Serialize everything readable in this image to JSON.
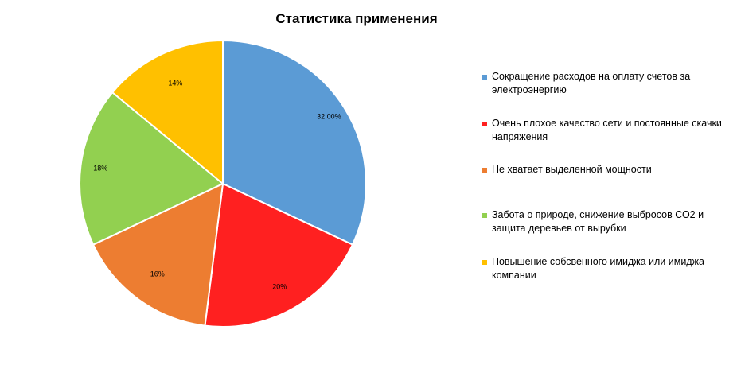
{
  "chart_data": {
    "type": "pie",
    "title": "Статистика применения",
    "categories": [
      "Сокращение расходов  на оплату счетов за электроэнергию",
      "Очень плохое качество сети и постоянные скачки напряжения",
      "Не хватает выделенной мощности",
      "Забота о природе, снижение выбросов СО2 и защита деревьев от вырубки",
      "Повышение собсвенного имиджа или имиджа компании"
    ],
    "values": [
      32,
      20,
      16,
      18,
      14
    ],
    "labels": [
      "32,00%",
      "20%",
      "16%",
      "18%",
      "14%"
    ],
    "colors": [
      "#5B9BD5",
      "#FF2020",
      "#ED7D31",
      "#92D050",
      "#FFC000"
    ],
    "legend_position": "right"
  }
}
